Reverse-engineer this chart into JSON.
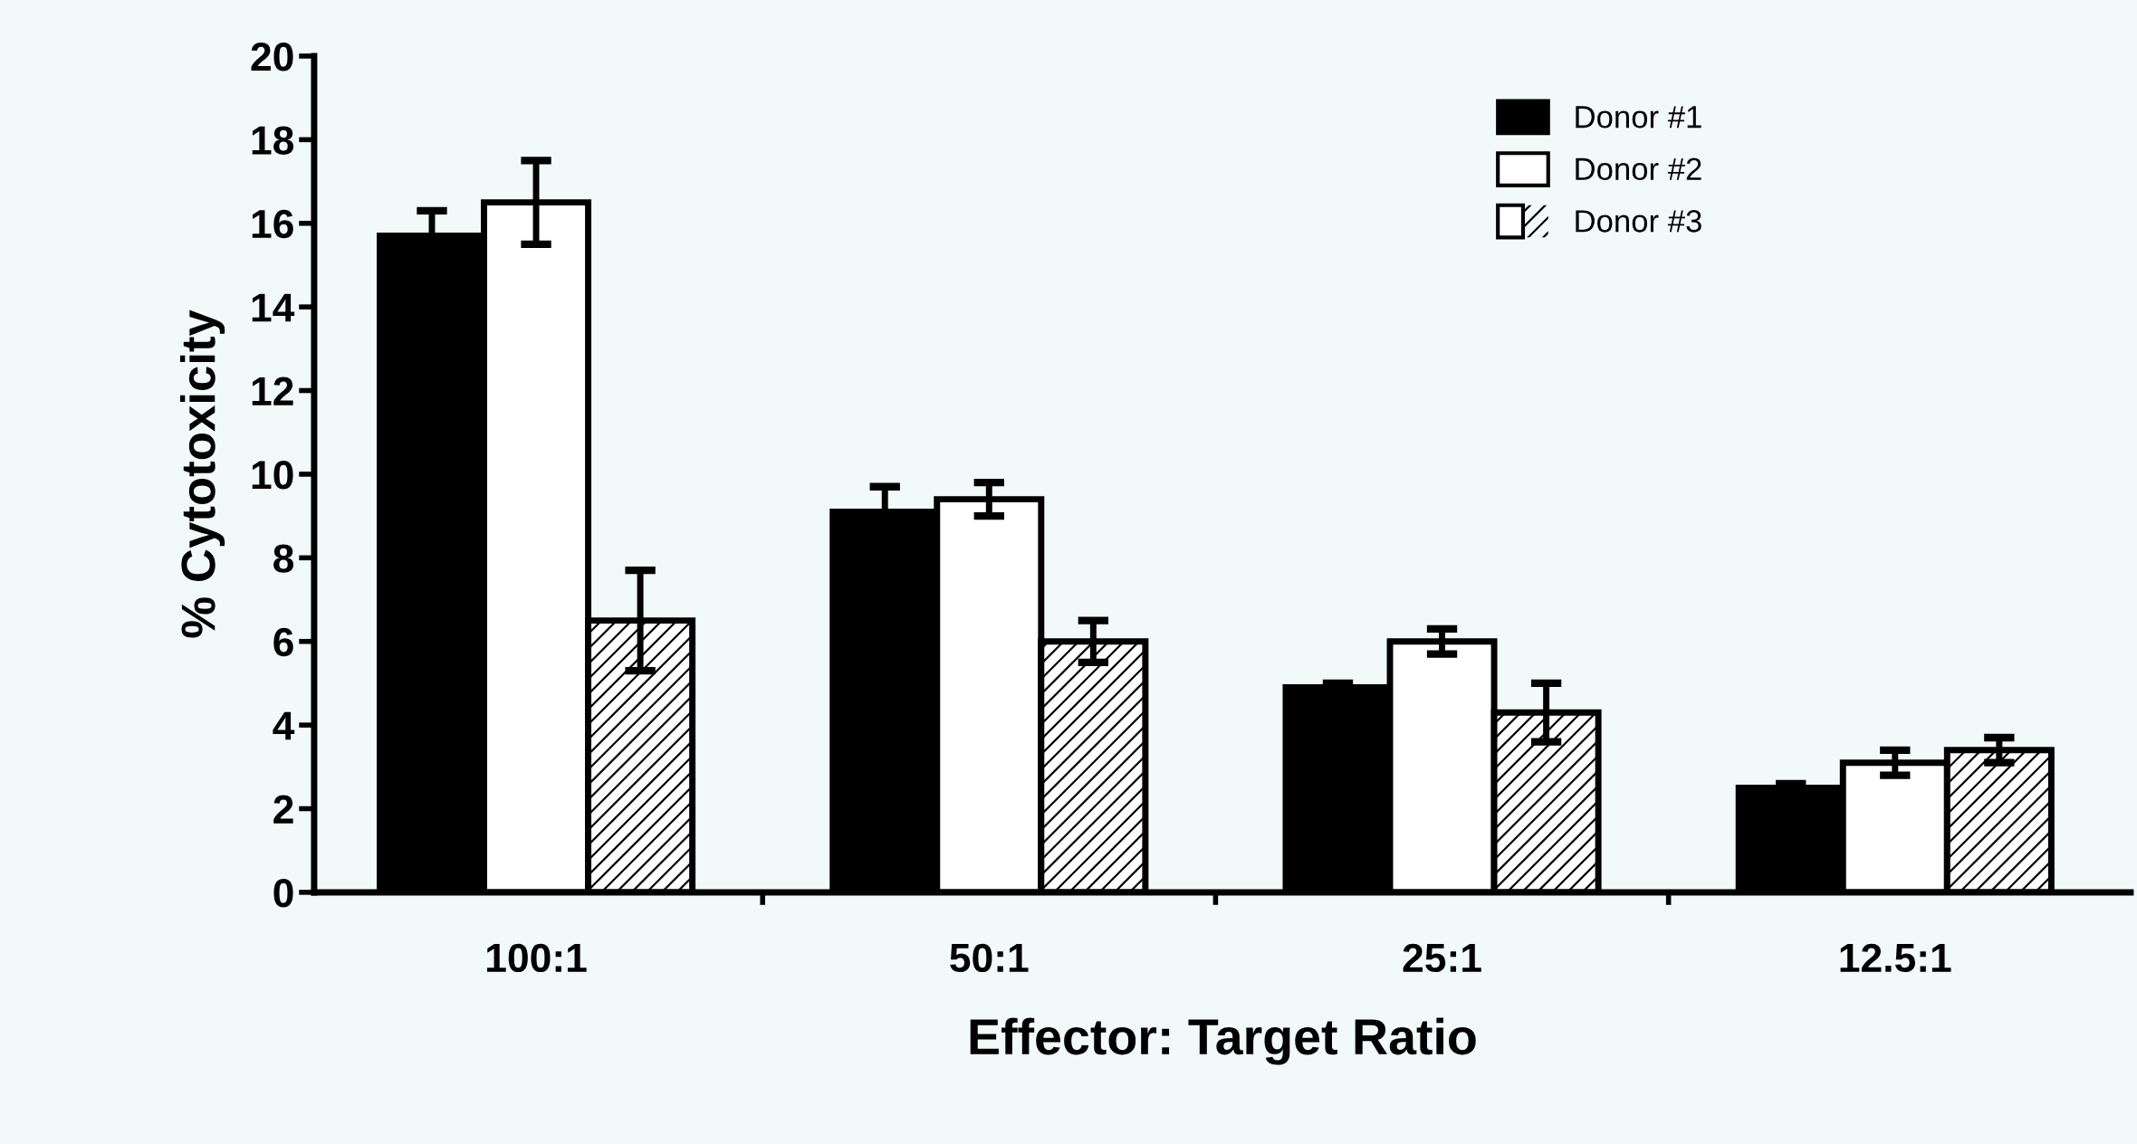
{
  "chart_data": {
    "type": "bar",
    "xlabel": "Effector: Target Ratio",
    "ylabel": "% Cytotoxicity",
    "categories": [
      "100:1",
      "50:1",
      "25:1",
      "12.5:1"
    ],
    "series": [
      {
        "name": "Donor #1",
        "color": "#000000",
        "values": [
          15.7,
          9.1,
          4.9,
          2.5
        ],
        "errors": [
          0.6,
          0.6,
          0.1,
          0.1
        ]
      },
      {
        "name": "Donor #2",
        "color": "#ffffff",
        "values": [
          16.5,
          9.4,
          6.0,
          3.1
        ],
        "errors": [
          1.0,
          0.4,
          0.3,
          0.3
        ]
      },
      {
        "name": "Donor #3",
        "color": "#ffffff",
        "values": [
          6.5,
          6.0,
          4.3,
          3.4
        ],
        "errors": [
          1.2,
          0.5,
          0.7,
          0.3
        ]
      }
    ],
    "ylim": [
      0,
      20
    ],
    "yticks": [
      0,
      2,
      4,
      6,
      8,
      10,
      12,
      14,
      16,
      18,
      20
    ],
    "grid": false,
    "legend": "top right"
  }
}
